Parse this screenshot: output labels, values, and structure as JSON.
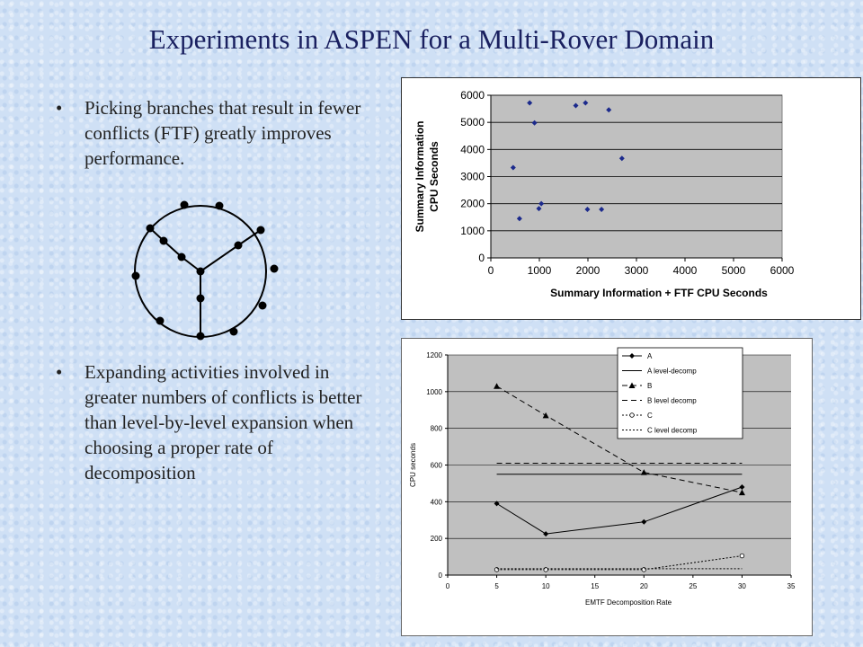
{
  "slide": {
    "title": "Experiments in ASPEN for a Multi-Rover Domain",
    "bullet_char": "•",
    "bullets": [
      "Picking branches that result in fewer conflicts (FTF) greatly improves performance.",
      "Expanding activities involved in greater numbers of conflicts is better than level-by-level expansion when choosing a proper rate of decomposition"
    ]
  },
  "chart_data": [
    {
      "type": "scatter",
      "xlabel": "Summary Information + FTF CPU Seconds",
      "ylabel_lines": [
        "Summary Information",
        "CPU Seconds"
      ],
      "xlim": [
        0,
        6000
      ],
      "ylim": [
        0,
        6000
      ],
      "xticks": [
        0,
        1000,
        2000,
        3000,
        4000,
        5000,
        6000
      ],
      "yticks": [
        0,
        1000,
        2000,
        3000,
        4000,
        5000,
        6000
      ],
      "grid": "horizontal",
      "plot_background": "#c0c0c0",
      "marker_color": "#1c2a8c",
      "points": [
        {
          "x": 460,
          "y": 3330
        },
        {
          "x": 590,
          "y": 1450
        },
        {
          "x": 800,
          "y": 5720
        },
        {
          "x": 900,
          "y": 4980
        },
        {
          "x": 990,
          "y": 1820
        },
        {
          "x": 1040,
          "y": 2000
        },
        {
          "x": 1750,
          "y": 5620
        },
        {
          "x": 1950,
          "y": 5720
        },
        {
          "x": 1990,
          "y": 1790
        },
        {
          "x": 2280,
          "y": 1790
        },
        {
          "x": 2430,
          "y": 5460
        },
        {
          "x": 2700,
          "y": 3670
        }
      ]
    },
    {
      "type": "line",
      "xlabel": "EMTF Decomposition Rate",
      "ylabel": "CPU seconds",
      "xlim": [
        0,
        35
      ],
      "ylim": [
        0,
        1200
      ],
      "xticks": [
        0,
        5,
        10,
        15,
        20,
        25,
        30,
        35
      ],
      "yticks": [
        0,
        200,
        400,
        600,
        800,
        1000,
        1200
      ],
      "grid": "horizontal",
      "plot_background": "#c0c0c0",
      "legend": "top-right",
      "x": [
        5,
        10,
        20,
        30
      ],
      "series": [
        {
          "name": "A",
          "values": [
            390,
            225,
            290,
            480
          ],
          "line": "solid",
          "marker": "diamond"
        },
        {
          "name": "A level-decomp",
          "values": [
            550,
            550,
            550,
            550
          ],
          "line": "solid",
          "marker": "none"
        },
        {
          "name": "B",
          "values": [
            1030,
            870,
            560,
            450
          ],
          "line": "dashed",
          "marker": "triangle"
        },
        {
          "name": "B level decomp",
          "values": [
            610,
            610,
            610,
            610
          ],
          "line": "dashed",
          "marker": "none"
        },
        {
          "name": "C",
          "values": [
            30,
            30,
            30,
            105
          ],
          "line": "dotted",
          "marker": "circle"
        },
        {
          "name": "C level decomp",
          "values": [
            35,
            35,
            35,
            35
          ],
          "line": "dotted",
          "marker": "none"
        }
      ]
    }
  ]
}
